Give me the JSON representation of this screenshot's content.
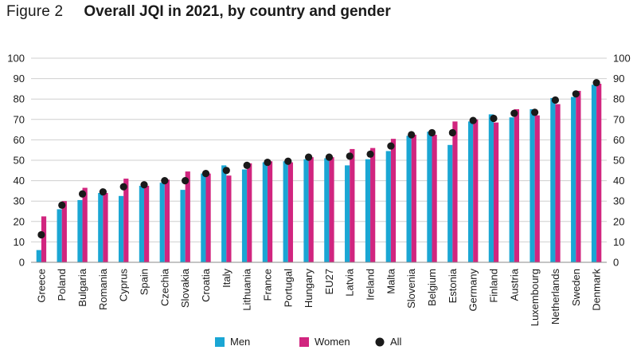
{
  "figure": {
    "label": "Figure 2",
    "title": "Overall JQI in 2021, by country and gender"
  },
  "colors": {
    "men": "#1aa6d4",
    "women": "#d1257f",
    "all": "#1a1a1a",
    "grid": "#cfcfcf",
    "axis": "#888888"
  },
  "chart_data": {
    "type": "bar",
    "title": "Overall JQI in 2021, by country and gender",
    "xlabel": "",
    "ylabel": "",
    "ylim": [
      0,
      100
    ],
    "yticks": [
      0,
      10,
      20,
      30,
      40,
      50,
      60,
      70,
      80,
      90,
      100
    ],
    "grid": true,
    "dual_y_axis": true,
    "legend_position": "bottom",
    "categories": [
      "Greece",
      "Poland",
      "Bulgaria",
      "Romania",
      "Cyprus",
      "Spain",
      "Czechia",
      "Slovakia",
      "Croatia",
      "Italy",
      "Lithuania",
      "France",
      "Portugal",
      "Hungary",
      "EU27",
      "Latvia",
      "Ireland",
      "Malta",
      "Slovenia",
      "Belgium",
      "Estonia",
      "Germany",
      "Finland",
      "Austria",
      "Luxembourg",
      "Netherlands",
      "Sweden",
      "Denmark"
    ],
    "series": [
      {
        "name": "Men",
        "type": "bar",
        "values": [
          6,
          26,
          30.5,
          34,
          32.5,
          37.5,
          39,
          35.5,
          43.5,
          47.5,
          45.5,
          49,
          49.5,
          50.5,
          51,
          47.5,
          50.5,
          54.5,
          62,
          64,
          57.5,
          69,
          72.5,
          71,
          75,
          80.5,
          81,
          87
        ]
      },
      {
        "name": "Women",
        "type": "bar",
        "values": [
          22.5,
          30,
          36.5,
          34,
          41,
          37.5,
          40.5,
          44.5,
          43.5,
          42.5,
          48.5,
          49.5,
          49,
          51.5,
          51.5,
          55.5,
          56,
          60.5,
          62.5,
          62.5,
          69,
          70,
          68.5,
          75,
          72,
          77.5,
          84,
          87.5
        ]
      },
      {
        "name": "All",
        "type": "scatter",
        "values": [
          13.5,
          28,
          33.5,
          34.5,
          37,
          38,
          40,
          40,
          43.5,
          45,
          47.5,
          49,
          49.5,
          51.5,
          51.5,
          52,
          53,
          57,
          62.5,
          63.5,
          63.5,
          69.5,
          70.5,
          73,
          73.5,
          79.5,
          82.5,
          88
        ]
      }
    ]
  }
}
